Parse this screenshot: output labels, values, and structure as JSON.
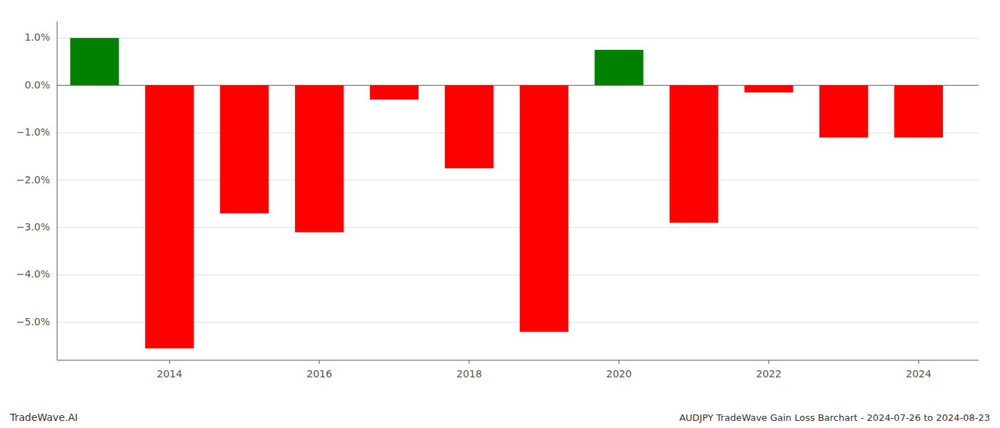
{
  "chart_data": {
    "type": "bar",
    "title": "AUDJPY TradeWave Gain Loss Barchart - 2024-07-26 to 2024-08-23",
    "annotations": [
      "TradeWave.AI"
    ],
    "x": [
      2013,
      2014,
      2015,
      2016,
      2017,
      2018,
      2019,
      2020,
      2021,
      2022,
      2023,
      2024
    ],
    "values": [
      1.0,
      -5.55,
      -2.7,
      -3.1,
      -0.3,
      -1.75,
      -5.2,
      0.75,
      -2.9,
      -0.15,
      -1.1,
      -1.1
    ],
    "colors": [
      "#008000",
      "#ff0000",
      "#ff0000",
      "#ff0000",
      "#ff0000",
      "#ff0000",
      "#ff0000",
      "#008000",
      "#ff0000",
      "#ff0000",
      "#ff0000",
      "#ff0000"
    ],
    "xlim": [
      2012.5,
      2024.8
    ],
    "xticks": [
      2014,
      2016,
      2018,
      2020,
      2022,
      2024
    ],
    "ylim": [
      -5.8,
      1.35
    ],
    "yticks": [
      {
        "value": 1.0,
        "label": "1.0%"
      },
      {
        "value": 0.0,
        "label": "0.0%"
      },
      {
        "value": -1.0,
        "label": "−1.0%"
      },
      {
        "value": -2.0,
        "label": "−2.0%"
      },
      {
        "value": -3.0,
        "label": "−3.0%"
      },
      {
        "value": -4.0,
        "label": "−4.0%"
      },
      {
        "value": -5.0,
        "label": "−5.0%"
      }
    ],
    "grid": true
  }
}
